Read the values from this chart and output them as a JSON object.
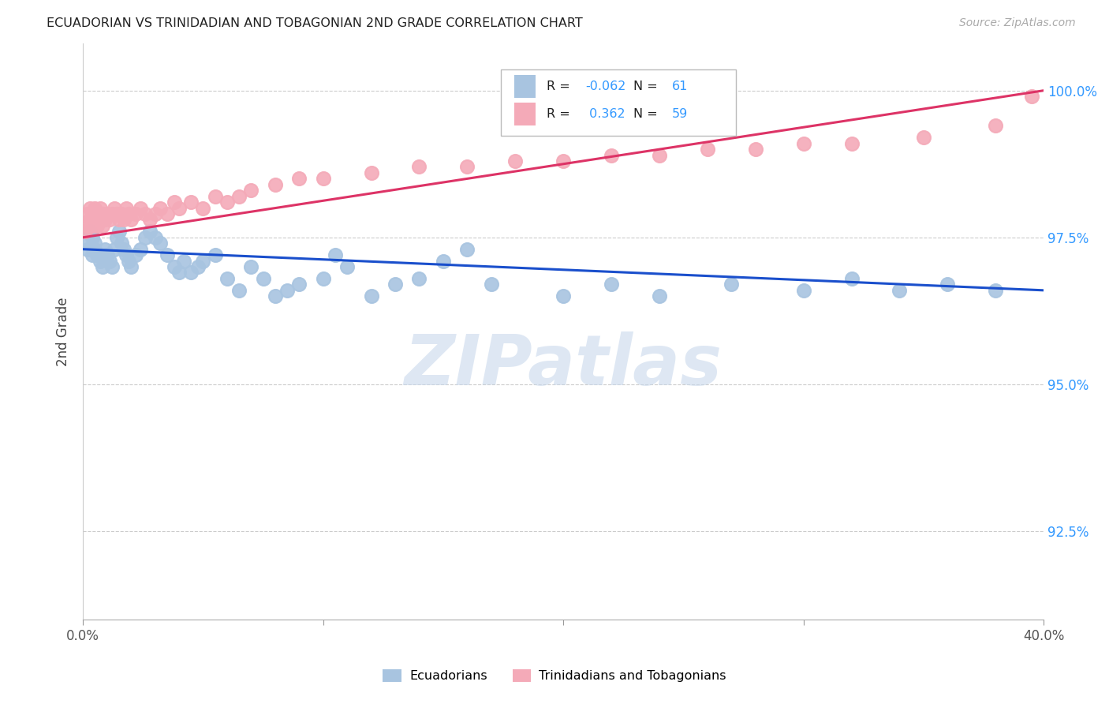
{
  "title": "ECUADORIAN VS TRINIDADIAN AND TOBAGONIAN 2ND GRADE CORRELATION CHART",
  "source": "Source: ZipAtlas.com",
  "ylabel": "2nd Grade",
  "ytick_values": [
    0.925,
    0.95,
    0.975,
    1.0
  ],
  "xmin": 0.0,
  "xmax": 0.4,
  "ymin": 0.91,
  "ymax": 1.008,
  "legend_r_blue": "-0.062",
  "legend_n_blue": "61",
  "legend_r_pink": "0.362",
  "legend_n_pink": "59",
  "blue_color": "#a8c4e0",
  "pink_color": "#f4aab8",
  "line_blue_color": "#1a4fcc",
  "line_pink_color": "#dd3366",
  "watermark_color": "#c8d8ec",
  "blue_scatter_x": [
    0.001,
    0.002,
    0.003,
    0.004,
    0.004,
    0.005,
    0.005,
    0.006,
    0.007,
    0.008,
    0.009,
    0.01,
    0.011,
    0.012,
    0.013,
    0.014,
    0.015,
    0.016,
    0.017,
    0.018,
    0.019,
    0.02,
    0.022,
    0.024,
    0.026,
    0.028,
    0.03,
    0.032,
    0.035,
    0.038,
    0.04,
    0.042,
    0.045,
    0.048,
    0.05,
    0.055,
    0.06,
    0.065,
    0.07,
    0.075,
    0.08,
    0.085,
    0.09,
    0.1,
    0.105,
    0.11,
    0.12,
    0.13,
    0.14,
    0.15,
    0.16,
    0.17,
    0.2,
    0.22,
    0.24,
    0.27,
    0.3,
    0.32,
    0.34,
    0.36,
    0.38
  ],
  "blue_scatter_y": [
    0.974,
    0.973,
    0.976,
    0.975,
    0.972,
    0.973,
    0.974,
    0.972,
    0.971,
    0.97,
    0.973,
    0.972,
    0.971,
    0.97,
    0.973,
    0.975,
    0.976,
    0.974,
    0.973,
    0.972,
    0.971,
    0.97,
    0.972,
    0.973,
    0.975,
    0.976,
    0.975,
    0.974,
    0.972,
    0.97,
    0.969,
    0.971,
    0.969,
    0.97,
    0.971,
    0.972,
    0.968,
    0.966,
    0.97,
    0.968,
    0.965,
    0.966,
    0.967,
    0.968,
    0.972,
    0.97,
    0.965,
    0.967,
    0.968,
    0.971,
    0.973,
    0.967,
    0.965,
    0.967,
    0.965,
    0.967,
    0.966,
    0.968,
    0.966,
    0.967,
    0.966
  ],
  "pink_scatter_x": [
    0.001,
    0.002,
    0.002,
    0.003,
    0.003,
    0.004,
    0.004,
    0.005,
    0.005,
    0.006,
    0.006,
    0.007,
    0.007,
    0.008,
    0.008,
    0.009,
    0.01,
    0.011,
    0.012,
    0.013,
    0.014,
    0.015,
    0.016,
    0.017,
    0.018,
    0.019,
    0.02,
    0.022,
    0.024,
    0.026,
    0.028,
    0.03,
    0.032,
    0.035,
    0.038,
    0.04,
    0.045,
    0.05,
    0.055,
    0.06,
    0.065,
    0.07,
    0.08,
    0.09,
    0.1,
    0.12,
    0.14,
    0.16,
    0.18,
    0.2,
    0.22,
    0.24,
    0.26,
    0.28,
    0.3,
    0.32,
    0.35,
    0.38,
    0.395
  ],
  "pink_scatter_y": [
    0.976,
    0.979,
    0.977,
    0.98,
    0.978,
    0.979,
    0.977,
    0.978,
    0.98,
    0.979,
    0.977,
    0.978,
    0.98,
    0.979,
    0.977,
    0.978,
    0.979,
    0.978,
    0.979,
    0.98,
    0.979,
    0.978,
    0.979,
    0.978,
    0.98,
    0.979,
    0.978,
    0.979,
    0.98,
    0.979,
    0.978,
    0.979,
    0.98,
    0.979,
    0.981,
    0.98,
    0.981,
    0.98,
    0.982,
    0.981,
    0.982,
    0.983,
    0.984,
    0.985,
    0.985,
    0.986,
    0.987,
    0.987,
    0.988,
    0.988,
    0.989,
    0.989,
    0.99,
    0.99,
    0.991,
    0.991,
    0.992,
    0.994,
    0.999
  ]
}
